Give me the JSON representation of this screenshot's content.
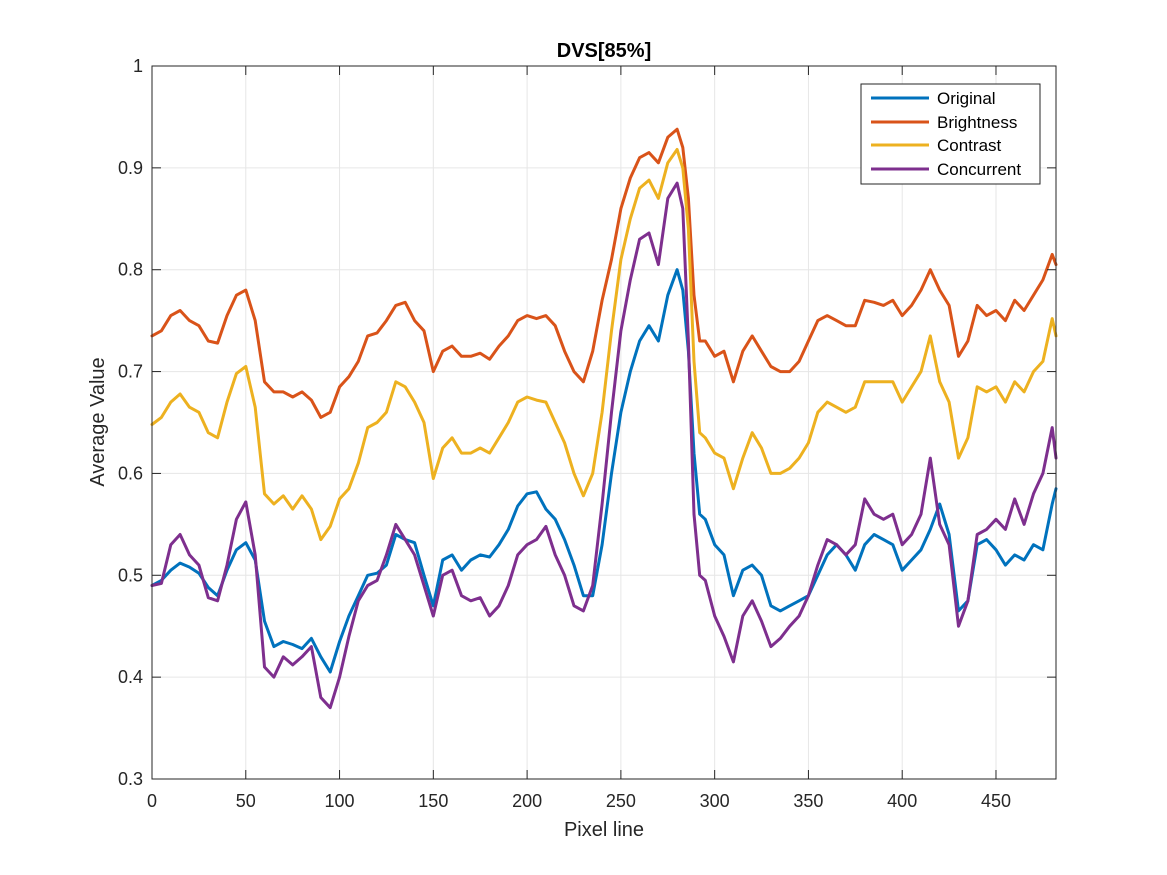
{
  "chart_data": {
    "type": "line",
    "title": "DVS[85%]",
    "xlabel": "Pixel line",
    "ylabel": "Average Value",
    "xlim": [
      0,
      482
    ],
    "ylim": [
      0.3,
      1.0
    ],
    "xticks": [
      0,
      50,
      100,
      150,
      200,
      250,
      300,
      350,
      400,
      450
    ],
    "yticks": [
      0.3,
      0.4,
      0.5,
      0.6,
      0.7,
      0.8,
      0.9,
      1.0
    ],
    "xtick_labels": [
      "0",
      "50",
      "100",
      "150",
      "200",
      "250",
      "300",
      "350",
      "400",
      "450"
    ],
    "ytick_labels": [
      "0.3",
      "0.4",
      "0.5",
      "0.6",
      "0.7",
      "0.8",
      "0.9",
      "1"
    ],
    "grid": true,
    "legend_position": "top-right",
    "series": [
      {
        "name": "Original",
        "color": "#0072BD",
        "x": [
          0,
          5,
          10,
          15,
          20,
          25,
          30,
          35,
          40,
          45,
          50,
          55,
          60,
          65,
          70,
          75,
          80,
          85,
          90,
          95,
          100,
          105,
          110,
          115,
          120,
          125,
          130,
          135,
          140,
          145,
          150,
          155,
          160,
          165,
          170,
          175,
          180,
          185,
          190,
          195,
          200,
          205,
          210,
          215,
          220,
          225,
          230,
          235,
          240,
          245,
          250,
          255,
          260,
          265,
          270,
          275,
          280,
          283,
          286,
          289,
          292,
          295,
          300,
          305,
          310,
          315,
          320,
          325,
          330,
          335,
          340,
          345,
          350,
          355,
          360,
          365,
          370,
          375,
          380,
          385,
          390,
          395,
          400,
          405,
          410,
          415,
          420,
          425,
          430,
          435,
          440,
          445,
          450,
          455,
          460,
          465,
          470,
          475,
          480,
          482
        ],
        "y": [
          0.49,
          0.495,
          0.505,
          0.512,
          0.508,
          0.502,
          0.488,
          0.48,
          0.505,
          0.525,
          0.532,
          0.515,
          0.455,
          0.43,
          0.435,
          0.432,
          0.428,
          0.438,
          0.42,
          0.405,
          0.435,
          0.46,
          0.48,
          0.5,
          0.502,
          0.51,
          0.54,
          0.535,
          0.532,
          0.5,
          0.47,
          0.515,
          0.52,
          0.505,
          0.515,
          0.52,
          0.518,
          0.53,
          0.545,
          0.568,
          0.58,
          0.582,
          0.565,
          0.555,
          0.535,
          0.51,
          0.48,
          0.48,
          0.53,
          0.6,
          0.66,
          0.7,
          0.73,
          0.745,
          0.73,
          0.775,
          0.8,
          0.78,
          0.72,
          0.62,
          0.56,
          0.555,
          0.53,
          0.52,
          0.48,
          0.505,
          0.51,
          0.5,
          0.47,
          0.465,
          0.47,
          0.475,
          0.48,
          0.5,
          0.52,
          0.53,
          0.52,
          0.505,
          0.53,
          0.54,
          0.535,
          0.53,
          0.505,
          0.515,
          0.525,
          0.545,
          0.57,
          0.54,
          0.465,
          0.475,
          0.53,
          0.535,
          0.525,
          0.51,
          0.52,
          0.515,
          0.53,
          0.525,
          0.57,
          0.585
        ]
      },
      {
        "name": "Brightness",
        "color": "#D95319",
        "x": [
          0,
          5,
          10,
          15,
          20,
          25,
          30,
          35,
          40,
          45,
          50,
          55,
          60,
          65,
          70,
          75,
          80,
          85,
          90,
          95,
          100,
          105,
          110,
          115,
          120,
          125,
          130,
          135,
          140,
          145,
          150,
          155,
          160,
          165,
          170,
          175,
          180,
          185,
          190,
          195,
          200,
          205,
          210,
          215,
          220,
          225,
          230,
          235,
          240,
          245,
          250,
          255,
          260,
          265,
          270,
          275,
          280,
          283,
          286,
          289,
          292,
          295,
          300,
          305,
          310,
          315,
          320,
          325,
          330,
          335,
          340,
          345,
          350,
          355,
          360,
          365,
          370,
          375,
          380,
          385,
          390,
          395,
          400,
          405,
          410,
          415,
          420,
          425,
          430,
          435,
          440,
          445,
          450,
          455,
          460,
          465,
          470,
          475,
          480,
          482
        ],
        "y": [
          0.735,
          0.74,
          0.755,
          0.76,
          0.75,
          0.745,
          0.73,
          0.728,
          0.755,
          0.775,
          0.78,
          0.75,
          0.69,
          0.68,
          0.68,
          0.675,
          0.68,
          0.672,
          0.655,
          0.66,
          0.685,
          0.695,
          0.71,
          0.735,
          0.738,
          0.75,
          0.765,
          0.768,
          0.75,
          0.74,
          0.7,
          0.72,
          0.725,
          0.715,
          0.715,
          0.718,
          0.712,
          0.725,
          0.735,
          0.75,
          0.755,
          0.752,
          0.755,
          0.745,
          0.72,
          0.7,
          0.69,
          0.72,
          0.77,
          0.81,
          0.86,
          0.89,
          0.91,
          0.915,
          0.905,
          0.93,
          0.938,
          0.92,
          0.87,
          0.775,
          0.73,
          0.73,
          0.715,
          0.72,
          0.69,
          0.72,
          0.735,
          0.72,
          0.705,
          0.7,
          0.7,
          0.71,
          0.73,
          0.75,
          0.755,
          0.75,
          0.745,
          0.745,
          0.77,
          0.768,
          0.765,
          0.77,
          0.755,
          0.765,
          0.78,
          0.8,
          0.78,
          0.765,
          0.715,
          0.73,
          0.765,
          0.755,
          0.76,
          0.75,
          0.77,
          0.76,
          0.775,
          0.79,
          0.815,
          0.805
        ]
      },
      {
        "name": "Contrast",
        "color": "#EDB120",
        "x": [
          0,
          5,
          10,
          15,
          20,
          25,
          30,
          35,
          40,
          45,
          50,
          55,
          60,
          65,
          70,
          75,
          80,
          85,
          90,
          95,
          100,
          105,
          110,
          115,
          120,
          125,
          130,
          135,
          140,
          145,
          150,
          155,
          160,
          165,
          170,
          175,
          180,
          185,
          190,
          195,
          200,
          205,
          210,
          215,
          220,
          225,
          230,
          235,
          240,
          245,
          250,
          255,
          260,
          265,
          270,
          275,
          280,
          283,
          286,
          289,
          292,
          295,
          300,
          305,
          310,
          315,
          320,
          325,
          330,
          335,
          340,
          345,
          350,
          355,
          360,
          365,
          370,
          375,
          380,
          385,
          390,
          395,
          400,
          405,
          410,
          415,
          420,
          425,
          430,
          435,
          440,
          445,
          450,
          455,
          460,
          465,
          470,
          475,
          480,
          482
        ],
        "y": [
          0.648,
          0.655,
          0.67,
          0.678,
          0.665,
          0.66,
          0.64,
          0.635,
          0.67,
          0.698,
          0.705,
          0.665,
          0.58,
          0.57,
          0.578,
          0.565,
          0.578,
          0.565,
          0.535,
          0.548,
          0.575,
          0.585,
          0.61,
          0.645,
          0.65,
          0.66,
          0.69,
          0.685,
          0.67,
          0.65,
          0.595,
          0.625,
          0.635,
          0.62,
          0.62,
          0.625,
          0.62,
          0.635,
          0.65,
          0.67,
          0.675,
          0.672,
          0.67,
          0.65,
          0.63,
          0.6,
          0.578,
          0.6,
          0.66,
          0.74,
          0.81,
          0.85,
          0.88,
          0.888,
          0.87,
          0.905,
          0.918,
          0.9,
          0.84,
          0.71,
          0.64,
          0.635,
          0.62,
          0.615,
          0.585,
          0.615,
          0.64,
          0.625,
          0.6,
          0.6,
          0.605,
          0.615,
          0.63,
          0.66,
          0.67,
          0.665,
          0.66,
          0.665,
          0.69,
          0.69,
          0.69,
          0.69,
          0.67,
          0.685,
          0.7,
          0.735,
          0.69,
          0.67,
          0.615,
          0.635,
          0.685,
          0.68,
          0.685,
          0.67,
          0.69,
          0.68,
          0.7,
          0.71,
          0.752,
          0.735
        ]
      },
      {
        "name": "Concurrent",
        "color": "#7E2F8E",
        "x": [
          0,
          5,
          10,
          15,
          20,
          25,
          30,
          35,
          40,
          45,
          50,
          55,
          60,
          65,
          70,
          75,
          80,
          85,
          90,
          95,
          100,
          105,
          110,
          115,
          120,
          125,
          130,
          135,
          140,
          145,
          150,
          155,
          160,
          165,
          170,
          175,
          180,
          185,
          190,
          195,
          200,
          205,
          210,
          215,
          220,
          225,
          230,
          235,
          240,
          245,
          250,
          255,
          260,
          265,
          270,
          275,
          280,
          283,
          286,
          289,
          292,
          295,
          300,
          305,
          310,
          315,
          320,
          325,
          330,
          335,
          340,
          345,
          350,
          355,
          360,
          365,
          370,
          375,
          380,
          385,
          390,
          395,
          400,
          405,
          410,
          415,
          420,
          425,
          430,
          435,
          440,
          445,
          450,
          455,
          460,
          465,
          470,
          475,
          480,
          482
        ],
        "y": [
          0.49,
          0.492,
          0.53,
          0.54,
          0.52,
          0.51,
          0.478,
          0.475,
          0.51,
          0.555,
          0.572,
          0.52,
          0.41,
          0.4,
          0.42,
          0.412,
          0.42,
          0.43,
          0.38,
          0.37,
          0.4,
          0.44,
          0.475,
          0.49,
          0.495,
          0.52,
          0.55,
          0.535,
          0.52,
          0.49,
          0.46,
          0.5,
          0.505,
          0.48,
          0.475,
          0.478,
          0.46,
          0.47,
          0.49,
          0.52,
          0.53,
          0.535,
          0.548,
          0.52,
          0.5,
          0.47,
          0.465,
          0.49,
          0.57,
          0.66,
          0.74,
          0.79,
          0.83,
          0.836,
          0.805,
          0.87,
          0.885,
          0.86,
          0.73,
          0.56,
          0.5,
          0.495,
          0.46,
          0.44,
          0.415,
          0.46,
          0.475,
          0.455,
          0.43,
          0.438,
          0.45,
          0.46,
          0.48,
          0.51,
          0.535,
          0.53,
          0.52,
          0.53,
          0.575,
          0.56,
          0.555,
          0.56,
          0.53,
          0.54,
          0.56,
          0.615,
          0.55,
          0.53,
          0.45,
          0.475,
          0.54,
          0.545,
          0.555,
          0.545,
          0.575,
          0.55,
          0.58,
          0.6,
          0.645,
          0.615
        ]
      }
    ]
  }
}
